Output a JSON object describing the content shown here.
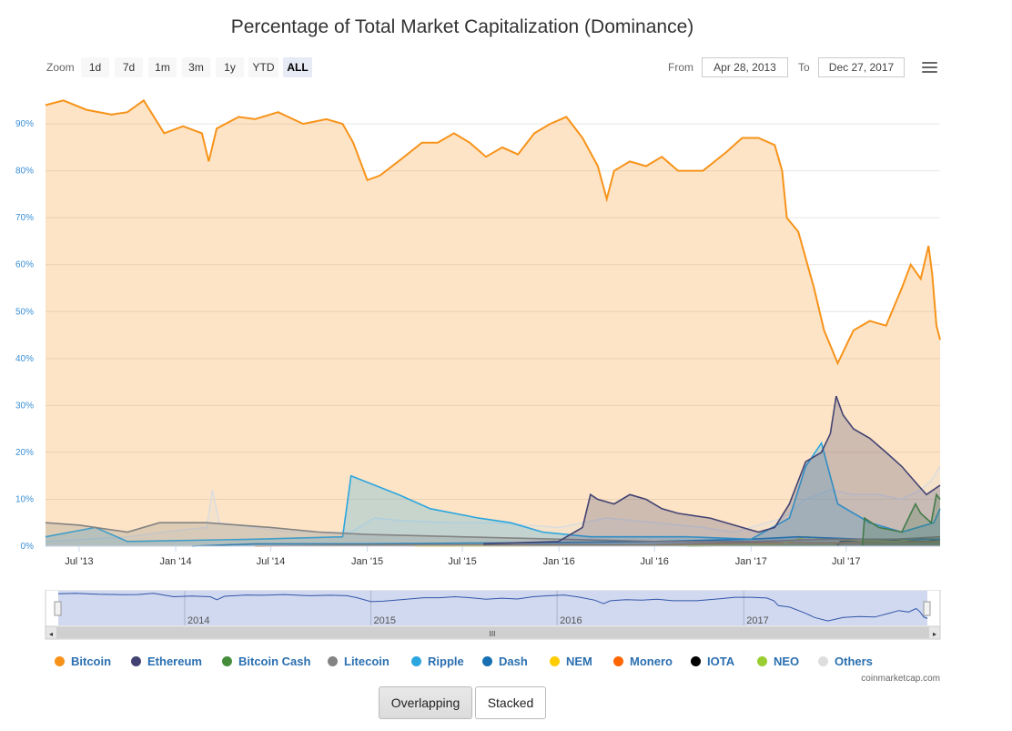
{
  "title": "Percentage of Total Market Capitalization (Dominance)",
  "toolbar": {
    "zoom_label": "Zoom",
    "zoom_buttons": [
      "1d",
      "7d",
      "1m",
      "3m",
      "1y",
      "YTD",
      "ALL"
    ],
    "active_zoom": "ALL",
    "from_label": "From",
    "from_value": "Apr 28, 2013",
    "to_label": "To",
    "to_value": "Dec 27, 2017"
  },
  "navigator": {
    "year_labels": [
      "2014",
      "2015",
      "2016",
      "2017"
    ],
    "scroll_grip": "III"
  },
  "credit": "coinmarketcap.com",
  "mode_buttons": {
    "overlapping": "Overlapping",
    "stacked": "Stacked"
  },
  "chart_data": {
    "type": "area",
    "title": "Percentage of Total Market Capitalization (Dominance)",
    "ylabel": "",
    "xlabel": "",
    "y_unit": "%",
    "ylim": [
      0,
      97
    ],
    "y_ticks": [
      "0%",
      "10%",
      "20%",
      "30%",
      "40%",
      "50%",
      "60%",
      "70%",
      "80%",
      "90%"
    ],
    "x_range": [
      "2013-04-28",
      "2017-12-27"
    ],
    "x_tick_labels": [
      {
        "label": "Jul '13",
        "date": "2013-07-01"
      },
      {
        "label": "Jan '14",
        "date": "2014-01-01"
      },
      {
        "label": "Jul '14",
        "date": "2014-07-01"
      },
      {
        "label": "Jan '15",
        "date": "2015-01-01"
      },
      {
        "label": "Jul '15",
        "date": "2015-07-01"
      },
      {
        "label": "Jan '16",
        "date": "2016-01-01"
      },
      {
        "label": "Jul '16",
        "date": "2016-07-01"
      },
      {
        "label": "Jan '17",
        "date": "2017-01-01"
      },
      {
        "label": "Jul '17",
        "date": "2017-07-01"
      }
    ],
    "grid": true,
    "series": [
      {
        "name": "Bitcoin",
        "color": "#f7931a",
        "points": [
          [
            "2013-04-28",
            94
          ],
          [
            "2013-06-01",
            95
          ],
          [
            "2013-07-15",
            93
          ],
          [
            "2013-09-01",
            92
          ],
          [
            "2013-10-01",
            92.5
          ],
          [
            "2013-11-01",
            95
          ],
          [
            "2013-12-10",
            88
          ],
          [
            "2014-01-15",
            89.5
          ],
          [
            "2014-02-20",
            88
          ],
          [
            "2014-03-05",
            82
          ],
          [
            "2014-03-20",
            89
          ],
          [
            "2014-05-01",
            91.5
          ],
          [
            "2014-06-01",
            91
          ],
          [
            "2014-07-15",
            92.5
          ],
          [
            "2014-09-01",
            90
          ],
          [
            "2014-10-15",
            91
          ],
          [
            "2014-11-15",
            90
          ],
          [
            "2014-12-05",
            86
          ],
          [
            "2015-01-01",
            78
          ],
          [
            "2015-01-25",
            79
          ],
          [
            "2015-03-01",
            82
          ],
          [
            "2015-04-15",
            86
          ],
          [
            "2015-05-15",
            86
          ],
          [
            "2015-06-15",
            88
          ],
          [
            "2015-07-15",
            86
          ],
          [
            "2015-08-15",
            83
          ],
          [
            "2015-09-15",
            85
          ],
          [
            "2015-10-15",
            83.5
          ],
          [
            "2015-11-15",
            88
          ],
          [
            "2015-12-15",
            90
          ],
          [
            "2016-01-15",
            91.5
          ],
          [
            "2016-02-15",
            87
          ],
          [
            "2016-03-15",
            81
          ],
          [
            "2016-04-01",
            74
          ],
          [
            "2016-04-15",
            80
          ],
          [
            "2016-05-15",
            82
          ],
          [
            "2016-06-15",
            81
          ],
          [
            "2016-07-15",
            83
          ],
          [
            "2016-08-15",
            80
          ],
          [
            "2016-10-01",
            80
          ],
          [
            "2016-11-15",
            84
          ],
          [
            "2016-12-15",
            87
          ],
          [
            "2017-01-15",
            87
          ],
          [
            "2017-02-15",
            85.5
          ],
          [
            "2017-03-01",
            80
          ],
          [
            "2017-03-10",
            70
          ],
          [
            "2017-04-01",
            67
          ],
          [
            "2017-05-01",
            55
          ],
          [
            "2017-05-20",
            46
          ],
          [
            "2017-06-15",
            39
          ],
          [
            "2017-07-15",
            46
          ],
          [
            "2017-08-15",
            48
          ],
          [
            "2017-09-15",
            47
          ],
          [
            "2017-10-15",
            55
          ],
          [
            "2017-11-01",
            60
          ],
          [
            "2017-11-20",
            57
          ],
          [
            "2017-12-05",
            64
          ],
          [
            "2017-12-12",
            58
          ],
          [
            "2017-12-20",
            47
          ],
          [
            "2017-12-27",
            44
          ]
        ]
      },
      {
        "name": "Ethereum",
        "color": "#434373",
        "points": [
          [
            "2015-08-10",
            0.5
          ],
          [
            "2015-12-31",
            1
          ],
          [
            "2016-02-15",
            4
          ],
          [
            "2016-03-01",
            11
          ],
          [
            "2016-03-15",
            10
          ],
          [
            "2016-04-15",
            9
          ],
          [
            "2016-05-15",
            11
          ],
          [
            "2016-06-15",
            10
          ],
          [
            "2016-07-15",
            8
          ],
          [
            "2016-08-15",
            7
          ],
          [
            "2016-10-15",
            6
          ],
          [
            "2016-12-15",
            4
          ],
          [
            "2017-01-15",
            3
          ],
          [
            "2017-02-15",
            4
          ],
          [
            "2017-03-15",
            9
          ],
          [
            "2017-04-15",
            18
          ],
          [
            "2017-05-15",
            20
          ],
          [
            "2017-06-01",
            24
          ],
          [
            "2017-06-12",
            32
          ],
          [
            "2017-06-25",
            28
          ],
          [
            "2017-07-15",
            25
          ],
          [
            "2017-08-15",
            23
          ],
          [
            "2017-09-15",
            20
          ],
          [
            "2017-10-15",
            17
          ],
          [
            "2017-11-15",
            13
          ],
          [
            "2017-12-01",
            11
          ],
          [
            "2017-12-27",
            13
          ]
        ]
      },
      {
        "name": "Bitcoin Cash",
        "color": "#458d3b",
        "points": [
          [
            "2017-08-01",
            0
          ],
          [
            "2017-08-05",
            6
          ],
          [
            "2017-09-01",
            4
          ],
          [
            "2017-10-15",
            3
          ],
          [
            "2017-11-10",
            9
          ],
          [
            "2017-11-20",
            7
          ],
          [
            "2017-12-10",
            5
          ],
          [
            "2017-12-20",
            11
          ],
          [
            "2017-12-27",
            10
          ]
        ]
      },
      {
        "name": "Litecoin",
        "color": "#838383",
        "points": [
          [
            "2013-04-28",
            5
          ],
          [
            "2013-07-01",
            4.5
          ],
          [
            "2013-10-01",
            3
          ],
          [
            "2013-12-01",
            5
          ],
          [
            "2014-03-01",
            5
          ],
          [
            "2014-07-01",
            4
          ],
          [
            "2014-10-01",
            3
          ],
          [
            "2015-01-01",
            2.5
          ],
          [
            "2015-07-01",
            2
          ],
          [
            "2016-01-01",
            1.5
          ],
          [
            "2016-07-01",
            1
          ],
          [
            "2017-01-01",
            1
          ],
          [
            "2017-06-01",
            1.5
          ],
          [
            "2017-10-01",
            1.5
          ],
          [
            "2017-12-27",
            2
          ]
        ]
      },
      {
        "name": "Ripple",
        "color": "#2ba6df",
        "points": [
          [
            "2013-04-28",
            2
          ],
          [
            "2013-08-01",
            4
          ],
          [
            "2013-10-01",
            1
          ],
          [
            "2014-06-01",
            1.5
          ],
          [
            "2014-11-15",
            2
          ],
          [
            "2014-12-01",
            15
          ],
          [
            "2015-01-15",
            13
          ],
          [
            "2015-03-01",
            11
          ],
          [
            "2015-05-01",
            8
          ],
          [
            "2015-08-01",
            6
          ],
          [
            "2015-10-01",
            5
          ],
          [
            "2015-12-01",
            3
          ],
          [
            "2016-03-01",
            2
          ],
          [
            "2016-09-01",
            2
          ],
          [
            "2017-01-01",
            1.5
          ],
          [
            "2017-03-15",
            6
          ],
          [
            "2017-04-15",
            17
          ],
          [
            "2017-05-15",
            22
          ],
          [
            "2017-06-15",
            9
          ],
          [
            "2017-08-15",
            5
          ],
          [
            "2017-10-15",
            3
          ],
          [
            "2017-12-15",
            5
          ],
          [
            "2017-12-27",
            8
          ]
        ]
      },
      {
        "name": "Dash",
        "color": "#1670b2",
        "points": [
          [
            "2014-02-01",
            0
          ],
          [
            "2014-06-01",
            0.5
          ],
          [
            "2015-01-01",
            0.5
          ],
          [
            "2016-01-01",
            0.8
          ],
          [
            "2016-07-01",
            1
          ],
          [
            "2017-01-01",
            1.5
          ],
          [
            "2017-04-01",
            2
          ],
          [
            "2017-08-01",
            1.5
          ],
          [
            "2017-12-27",
            1.5
          ]
        ]
      },
      {
        "name": "NEM",
        "color": "#ffcc00",
        "points": [
          [
            "2015-04-01",
            0
          ],
          [
            "2016-07-01",
            0.1
          ],
          [
            "2017-03-01",
            0.5
          ],
          [
            "2017-04-15",
            2
          ],
          [
            "2017-06-01",
            1.5
          ],
          [
            "2017-10-01",
            1
          ],
          [
            "2017-12-27",
            2
          ]
        ]
      },
      {
        "name": "Monero",
        "color": "#ff6600",
        "points": [
          [
            "2014-06-01",
            0
          ],
          [
            "2015-01-01",
            0.2
          ],
          [
            "2016-07-01",
            0.3
          ],
          [
            "2017-01-01",
            0.8
          ],
          [
            "2017-06-01",
            0.7
          ],
          [
            "2017-12-27",
            1
          ]
        ]
      },
      {
        "name": "IOTA",
        "color": "#000000",
        "points": [
          [
            "2017-06-13",
            0
          ],
          [
            "2017-06-20",
            1
          ],
          [
            "2017-09-01",
            1.5
          ],
          [
            "2017-12-01",
            1
          ],
          [
            "2017-12-27",
            1.5
          ]
        ]
      },
      {
        "name": "NEO",
        "color": "#9acd32",
        "points": [
          [
            "2016-09-01",
            0
          ],
          [
            "2017-06-01",
            0.3
          ],
          [
            "2017-08-15",
            1
          ],
          [
            "2017-12-27",
            0.8
          ]
        ]
      },
      {
        "name": "Others",
        "color": "#dddddd",
        "points": [
          [
            "2013-04-28",
            1
          ],
          [
            "2013-10-01",
            2
          ],
          [
            "2014-01-15",
            3.5
          ],
          [
            "2014-03-01",
            4
          ],
          [
            "2014-03-12",
            12
          ],
          [
            "2014-03-25",
            5
          ],
          [
            "2014-08-01",
            3
          ],
          [
            "2014-12-01",
            3
          ],
          [
            "2015-01-15",
            6
          ],
          [
            "2015-03-01",
            5.5
          ],
          [
            "2015-06-01",
            5
          ],
          [
            "2015-09-01",
            5
          ],
          [
            "2016-01-01",
            4
          ],
          [
            "2016-04-01",
            6
          ],
          [
            "2016-07-01",
            5
          ],
          [
            "2016-10-01",
            4
          ],
          [
            "2016-12-01",
            3
          ],
          [
            "2017-03-01",
            6
          ],
          [
            "2017-04-15",
            10
          ],
          [
            "2017-06-01",
            12
          ],
          [
            "2017-07-15",
            11
          ],
          [
            "2017-09-01",
            11
          ],
          [
            "2017-10-15",
            10
          ],
          [
            "2017-11-20",
            12
          ],
          [
            "2017-12-10",
            14
          ],
          [
            "2017-12-27",
            17
          ]
        ]
      }
    ]
  }
}
